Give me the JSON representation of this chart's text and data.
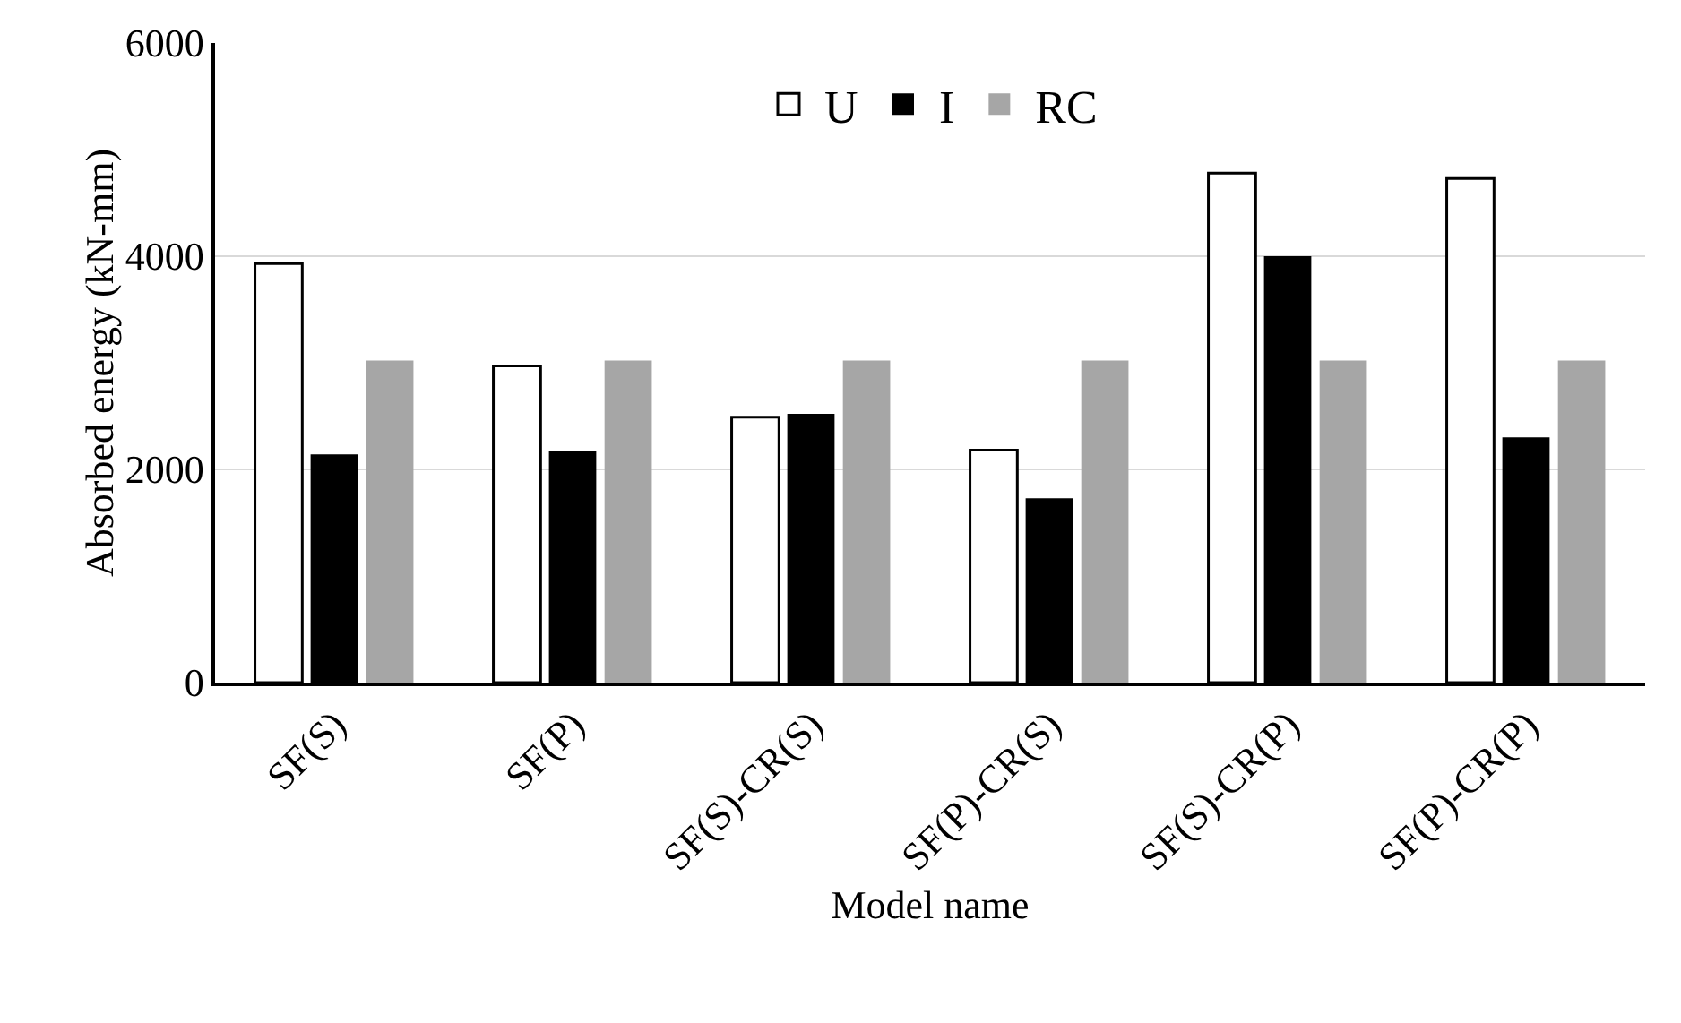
{
  "chart_data": {
    "type": "bar",
    "xlabel": "Model name",
    "ylabel": "Absorbed energy (kN-mm)",
    "categories": [
      "SF(S)",
      "SF(P)",
      "SF(S)-CR(S)",
      "SF(P)-CR(S)",
      "SF(S)-CR(P)",
      "SF(P)-CR(P)"
    ],
    "series": [
      {
        "name": "U",
        "color": "#ffffff",
        "values": [
          3930,
          2970,
          2490,
          2180,
          4780,
          4730
        ]
      },
      {
        "name": "I",
        "color": "#000000",
        "values": [
          2140,
          2170,
          2520,
          1730,
          4000,
          2300
        ]
      },
      {
        "name": "RC",
        "color": "#a6a6a6",
        "values": [
          3020,
          3020,
          3020,
          3020,
          3020,
          3020
        ]
      }
    ],
    "ylim": [
      0,
      6000
    ],
    "yticks": [
      0,
      2000,
      4000,
      6000
    ],
    "grid": "y",
    "legend": "top"
  }
}
